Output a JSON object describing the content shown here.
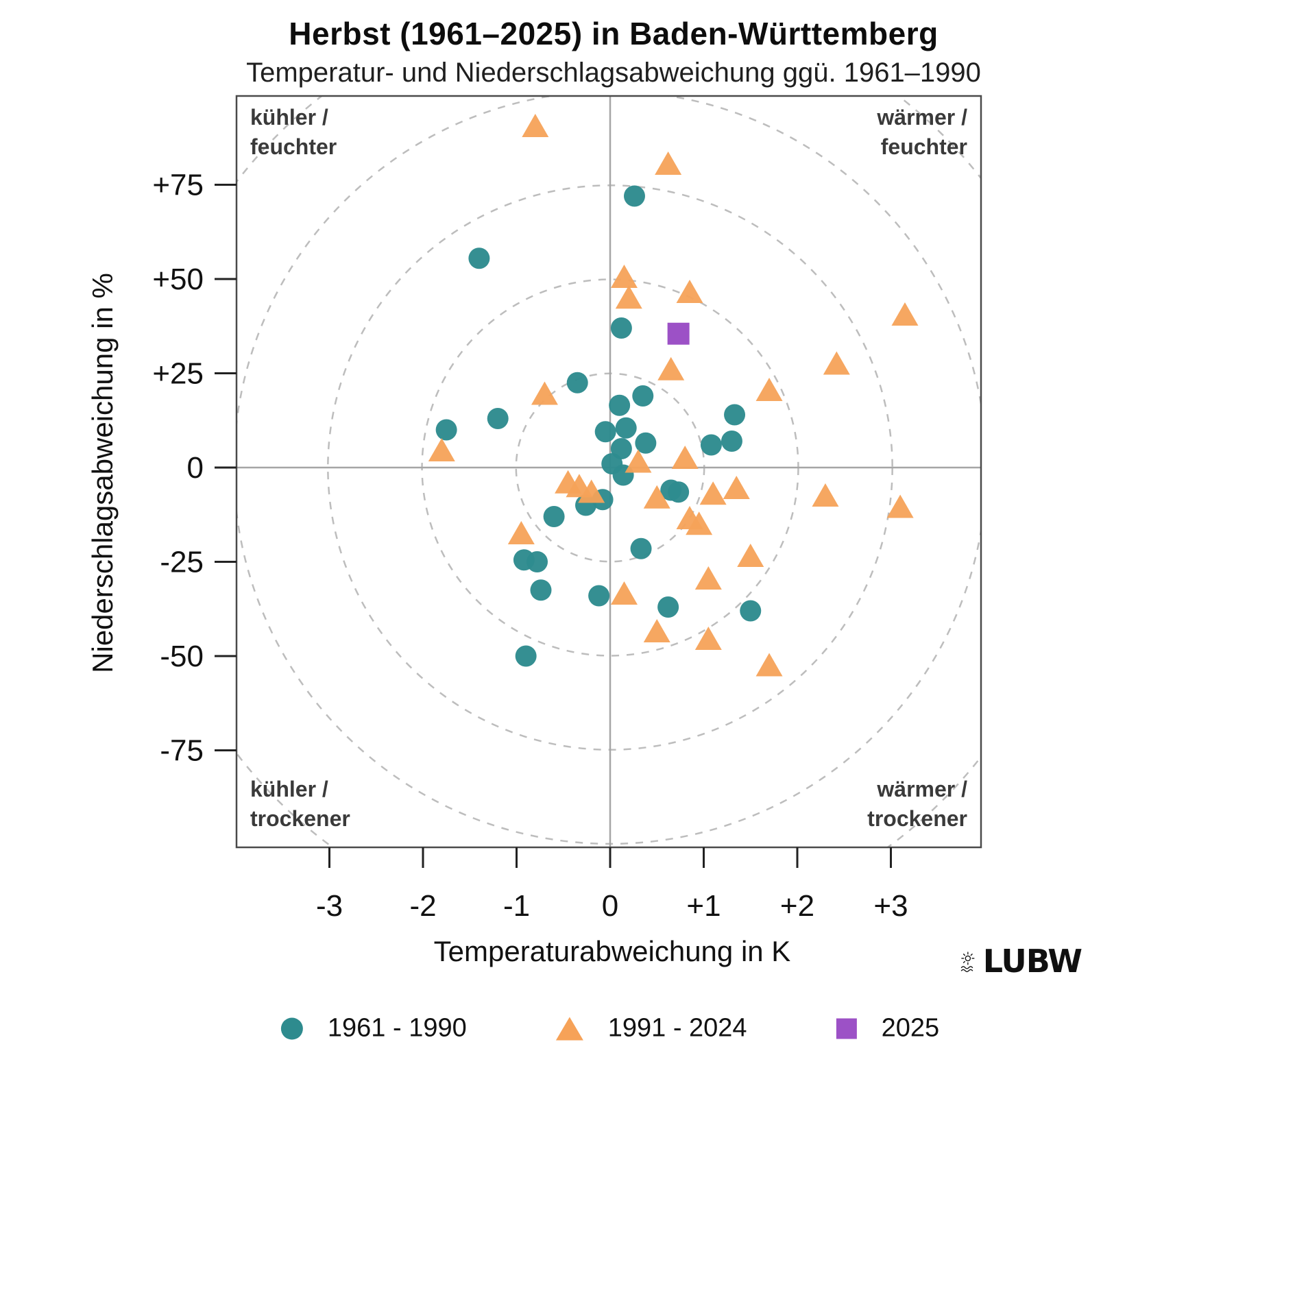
{
  "title": "Herbst (1961–2025) in Baden-Württemberg",
  "subtitle": "Temperatur- und Niederschlagsabweichung ggü. 1961–1990",
  "logo": {
    "text": "LUBW"
  },
  "chart_data": {
    "type": "scatter",
    "title": "Herbst (1961–2025) in Baden-Württemberg",
    "subtitle": "Temperatur- und Niederschlagsabweichung ggü. 1961–1990",
    "xlabel": "Temperaturabweichung in K",
    "ylabel": "Niederschlagsabweichung in %",
    "xlim": [
      -3.98,
      3.98
    ],
    "ylim": [
      -100.5,
      98.8
    ],
    "x_ticks": [
      -3,
      -2,
      -1,
      0,
      1,
      2,
      3
    ],
    "x_tick_labels": [
      "-3",
      "-2",
      "-1",
      "0",
      "+1",
      "+2",
      "+3"
    ],
    "y_ticks": [
      75,
      50,
      25,
      0,
      -25,
      -50,
      -75
    ],
    "y_tick_labels": [
      "+75",
      "+50",
      "+25",
      "0",
      "-25",
      "-50",
      "-75"
    ],
    "grid": "dashed concentric circles centered at origin",
    "guide_circle_radii_pct": [
      25,
      50,
      75,
      100,
      125
    ],
    "legend_position": "bottom",
    "quadrant_labels": {
      "top_left": [
        "kühler /",
        "feuchter"
      ],
      "top_right": [
        "wärmer /",
        "feuchter"
      ],
      "bottom_left": [
        "kühler /",
        "trockener"
      ],
      "bottom_right": [
        "wärmer /",
        "trockener"
      ]
    },
    "colors": {
      "teal": "#2e8b8e",
      "orange": "#f6a258",
      "purple": "#9c51c6",
      "guide": "#bdbdbd",
      "axis": "#a6a6a6",
      "border": "#4a4a4a"
    },
    "series": [
      {
        "name": "1961 - 1990",
        "marker": "circle",
        "color": "#2e8b8e",
        "points": [
          [
            0.26,
            72
          ],
          [
            -1.4,
            55.5
          ],
          [
            0.12,
            37
          ],
          [
            -0.35,
            22.5
          ],
          [
            0.35,
            19
          ],
          [
            0.1,
            16.5
          ],
          [
            1.33,
            14
          ],
          [
            -1.2,
            13
          ],
          [
            0.17,
            10.5
          ],
          [
            -1.75,
            10
          ],
          [
            -0.05,
            9.5
          ],
          [
            1.3,
            7
          ],
          [
            0.38,
            6.5
          ],
          [
            1.08,
            6
          ],
          [
            0.12,
            5
          ],
          [
            0.02,
            1
          ],
          [
            0.14,
            -2
          ],
          [
            0.65,
            -6
          ],
          [
            0.73,
            -6.5
          ],
          [
            -0.08,
            -8.5
          ],
          [
            -0.26,
            -10
          ],
          [
            -0.6,
            -13
          ],
          [
            0.33,
            -21.5
          ],
          [
            -0.92,
            -24.5
          ],
          [
            -0.78,
            -25
          ],
          [
            -0.74,
            -32.5
          ],
          [
            -0.12,
            -34
          ],
          [
            0.62,
            -37
          ],
          [
            1.5,
            -38
          ],
          [
            -0.9,
            -50
          ]
        ]
      },
      {
        "name": "1991 - 2024",
        "marker": "triangle",
        "color": "#f6a258",
        "points": [
          [
            -0.8,
            90
          ],
          [
            0.62,
            80
          ],
          [
            0.15,
            50
          ],
          [
            0.2,
            44.5
          ],
          [
            0.85,
            46
          ],
          [
            3.15,
            40
          ],
          [
            2.42,
            27
          ],
          [
            0.65,
            25.5
          ],
          [
            1.7,
            20
          ],
          [
            -0.7,
            19
          ],
          [
            -1.8,
            4
          ],
          [
            0.8,
            2
          ],
          [
            0.3,
            1
          ],
          [
            -0.45,
            -4.5
          ],
          [
            -0.33,
            -5.5
          ],
          [
            -0.2,
            -7
          ],
          [
            1.35,
            -6
          ],
          [
            1.1,
            -7.5
          ],
          [
            2.3,
            -8
          ],
          [
            0.5,
            -8.5
          ],
          [
            3.1,
            -11
          ],
          [
            0.85,
            -14
          ],
          [
            0.95,
            -15.5
          ],
          [
            -0.95,
            -18
          ],
          [
            1.5,
            -24
          ],
          [
            1.05,
            -30
          ],
          [
            0.15,
            -34
          ],
          [
            0.5,
            -44
          ],
          [
            1.05,
            -46
          ],
          [
            1.7,
            -53
          ]
        ]
      },
      {
        "name": "2025",
        "marker": "square",
        "color": "#9c51c6",
        "points": [
          [
            0.73,
            35.5
          ]
        ]
      }
    ]
  }
}
